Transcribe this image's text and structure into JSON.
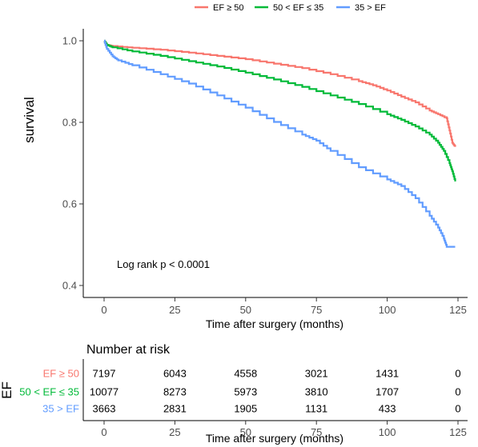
{
  "chart_data": [
    {
      "type": "line",
      "subtype": "kaplan-meier",
      "xlabel": "Time after surgery (months)",
      "ylabel": "survival",
      "xlim": [
        0,
        125
      ],
      "ylim": [
        0.4,
        1.0
      ],
      "xticks": [
        "0",
        "25",
        "50",
        "75",
        "100",
        "125"
      ],
      "yticks": [
        "0.4",
        "0.6",
        "0.8",
        "1.0"
      ],
      "grid": false,
      "legend_placement": "top",
      "annotation": "Log rank p < 0.0001",
      "series": [
        {
          "name": "EF ≥ 50",
          "color": "#F8766D",
          "x": [
            0,
            1,
            3,
            10,
            20,
            30,
            40,
            50,
            60,
            70,
            80,
            90,
            95,
            100,
            105,
            110,
            115,
            118,
            121,
            122,
            123,
            124
          ],
          "y": [
            1.0,
            0.99,
            0.987,
            0.983,
            0.978,
            0.971,
            0.963,
            0.955,
            0.944,
            0.933,
            0.918,
            0.901,
            0.891,
            0.878,
            0.863,
            0.849,
            0.829,
            0.82,
            0.81,
            0.78,
            0.75,
            0.74
          ]
        },
        {
          "name": "50 < EF ≤ 35",
          "color": "#00BA38",
          "x": [
            0,
            1,
            3,
            10,
            20,
            30,
            40,
            50,
            60,
            70,
            80,
            90,
            100,
            105,
            110,
            115,
            118,
            120,
            122,
            123,
            124
          ],
          "y": [
            1.0,
            0.99,
            0.984,
            0.974,
            0.963,
            0.95,
            0.937,
            0.922,
            0.905,
            0.887,
            0.866,
            0.845,
            0.82,
            0.806,
            0.79,
            0.77,
            0.75,
            0.73,
            0.7,
            0.68,
            0.655
          ]
        },
        {
          "name": "35 > EF",
          "color": "#619CFF",
          "x": [
            0,
            1,
            3,
            5,
            10,
            20,
            30,
            40,
            50,
            60,
            70,
            75,
            80,
            90,
            100,
            105,
            110,
            115,
            118,
            120,
            121,
            124
          ],
          "y": [
            1.0,
            0.98,
            0.962,
            0.952,
            0.94,
            0.918,
            0.895,
            0.866,
            0.836,
            0.801,
            0.77,
            0.755,
            0.73,
            0.69,
            0.66,
            0.644,
            0.614,
            0.571,
            0.542,
            0.515,
            0.495,
            0.495
          ]
        }
      ]
    },
    {
      "type": "table",
      "title": "Number at risk",
      "row_axis_label": "EF",
      "xlabel": "Time after surgery (months)",
      "xticks": [
        "0",
        "25",
        "50",
        "75",
        "100",
        "125"
      ],
      "rows": [
        {
          "name": "EF ≥ 50",
          "color": "#F8766D",
          "values": [
            "7197",
            "6043",
            "4558",
            "3021",
            "1431",
            "0"
          ]
        },
        {
          "name": "50 < EF ≤ 35",
          "color": "#00BA38",
          "values": [
            "10077",
            "8273",
            "5973",
            "3810",
            "1707",
            "0"
          ]
        },
        {
          "name": "35 > EF",
          "color": "#619CFF",
          "values": [
            "3663",
            "2831",
            "1905",
            "1131",
            "433",
            "0"
          ]
        }
      ]
    }
  ]
}
